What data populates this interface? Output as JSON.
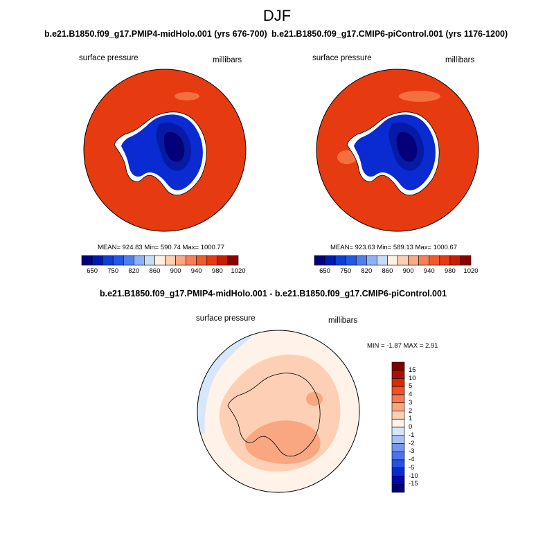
{
  "figure": {
    "season": "DJF"
  },
  "panels": [
    {
      "run": "b.e21.B1850.f09_g17.PMIP4-midHolo.001 (yrs 676-700)",
      "variable": "surface pressure",
      "units": "millibars",
      "stats": "MEAN= 924.83  Min= 590.74  Max= 1000.77"
    },
    {
      "run": "b.e21.B1850.f09_g17.CMIP6-piControl.001 (yrs 1176-1200)",
      "variable": "surface pressure",
      "units": "millibars",
      "stats": "MEAN= 923.63  Min= 589.13  Max= 1000.67"
    }
  ],
  "diff_panel": {
    "title": "b.e21.B1850.f09_g17.PMIP4-midHolo.001 - b.e21.B1850.f09_g17.CMIP6-piControl.001",
    "variable": "surface pressure",
    "units": "millibars",
    "stats": "MIN =  -1.87 MAX =   2.91"
  },
  "colorbar_main": {
    "colors": [
      "#05007a",
      "#0019b0",
      "#0d3ed8",
      "#2457e6",
      "#4f7fee",
      "#8eb0f4",
      "#c8dcf8",
      "#fff0e0",
      "#fbcfb4",
      "#f8a884",
      "#f67f57",
      "#f15a2e",
      "#e83a10",
      "#c81e00",
      "#8e0000"
    ],
    "tick_labels": [
      "650",
      "750",
      "820",
      "860",
      "900",
      "940",
      "980",
      "1020"
    ]
  },
  "colorbar_diff": {
    "colors": [
      "#000080",
      "#0008b4",
      "#0a2ad4",
      "#2851e4",
      "#4a73ec",
      "#7397f0",
      "#a9c2f5",
      "#d6e6fb",
      "#fff2e8",
      "#fdd0b5",
      "#f9a781",
      "#f57a52",
      "#ee5126",
      "#d92b00",
      "#ad1000",
      "#800000"
    ],
    "tick_labels": [
      "15",
      "10",
      "5",
      "4",
      "3",
      "2",
      "1",
      "0",
      "-1",
      "-2",
      "-3",
      "-4",
      "-5",
      "-10",
      "-15"
    ]
  }
}
